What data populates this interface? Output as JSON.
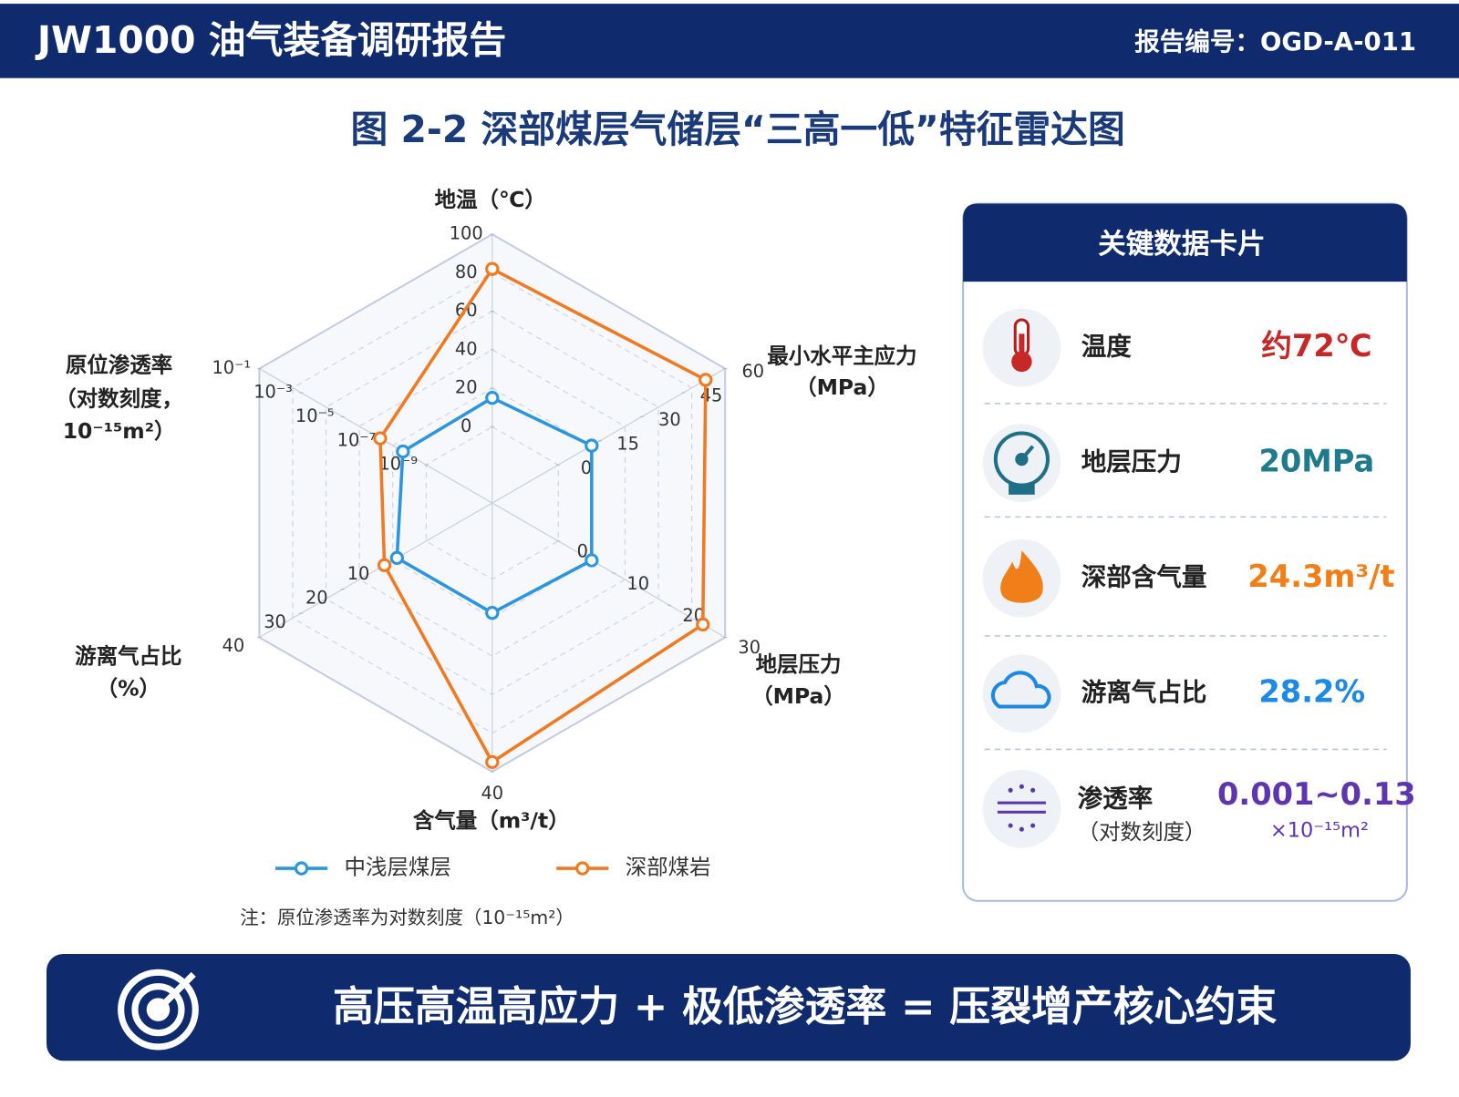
{
  "header": {
    "title": "JW1000 油气装备调研报告",
    "report_no": "报告编号：OGD-A-011"
  },
  "chart_data": {
    "type": "radar",
    "title": "图 2-2  深部煤层气储层“三高一低”特征雷达图",
    "axes": [
      {
        "name": [
          "地温（℃）"
        ],
        "lim": [
          0,
          100
        ],
        "ticks": [
          0,
          20,
          40,
          60,
          80,
          100
        ]
      },
      {
        "name": [
          "最小水平主应力",
          "（MPa）"
        ],
        "lim": [
          0,
          60
        ],
        "ticks": [
          0,
          15,
          30,
          45,
          60
        ]
      },
      {
        "name": [
          "地层压力",
          "（MPa）"
        ],
        "lim": [
          0,
          30
        ],
        "ticks": [
          0,
          10,
          20,
          30
        ]
      },
      {
        "name": [
          "含气量（m³/t）"
        ],
        "lim": [
          0,
          40
        ],
        "ticks": [
          40
        ]
      },
      {
        "name": [
          "游离气占比",
          "（%）"
        ],
        "lim": [
          0,
          40
        ],
        "ticks": [
          10,
          20,
          30,
          40
        ]
      },
      {
        "name": [
          "原位渗透率",
          "（对数刻度，",
          "10⁻¹⁵m²）"
        ],
        "lim": [
          1e-09,
          0.1
        ],
        "log": true,
        "ticks": [
          {
            "value": 1e-09,
            "label": "10⁻⁹"
          },
          {
            "value": 1e-07,
            "label": "10⁻⁷"
          },
          {
            "value": 1e-05,
            "label": "10⁻⁵"
          },
          {
            "value": 0.001,
            "label": "10⁻³"
          },
          {
            "value": 0.1,
            "label": "10⁻¹"
          }
        ]
      }
    ],
    "series": [
      {
        "name": "中浅层煤层",
        "color": "#2b95e0",
        "values": [
          15,
          12,
          6,
          7,
          7,
          1.3e-08
        ]
      },
      {
        "name": "深部煤岩",
        "color": "#ef7a23",
        "values": [
          82,
          53,
          26,
          38,
          10,
          1.6e-07
        ]
      }
    ],
    "grid": true,
    "legend": "bottom",
    "note": "注：原位渗透率为对数刻度（10⁻¹⁵m²）"
  },
  "card": {
    "title": "关键数据卡片",
    "items": [
      {
        "label": [
          "温度"
        ],
        "value": [
          "约72℃"
        ]
      },
      {
        "label": [
          "地层压力"
        ],
        "value": [
          "20MPa"
        ]
      },
      {
        "label": [
          "深部含气量"
        ],
        "value": [
          "24.3m³/t"
        ]
      },
      {
        "label": [
          "游离气占比"
        ],
        "value": [
          "28.2%"
        ]
      },
      {
        "label": [
          "渗透率",
          "（对数刻度）"
        ],
        "value": [
          "0.001~0.13",
          "×10⁻¹⁵m²"
        ]
      }
    ]
  },
  "banner": {
    "text": "高压高温高应力 + 极低渗透率 = 压裂增产核心约束"
  }
}
